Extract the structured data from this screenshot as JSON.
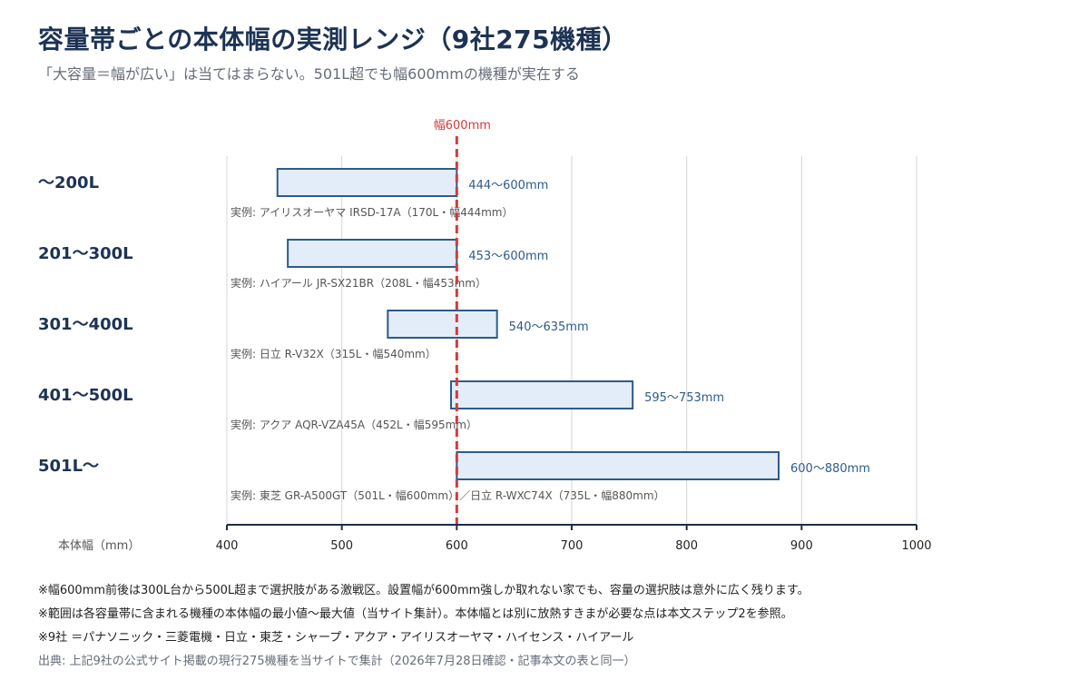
{
  "title": "容量帯ごとの本体幅の実測レンジ（9社275機種）",
  "subtitle": "「大容量＝幅が広い」は当てはまらない。501L超でも幅600mmの機種が実在する",
  "chart_data": {
    "type": "range-bar",
    "xlabel": "本体幅（mm）",
    "xlim": [
      400,
      1000
    ],
    "xticks": [
      400,
      500,
      600,
      700,
      800,
      900,
      1000
    ],
    "grid": true,
    "reference_line": {
      "value": 600,
      "label": "幅600mm",
      "color": "#d63a3a"
    },
    "categories": [
      "～200L",
      "201～300L",
      "301～400L",
      "401～500L",
      "501L～"
    ],
    "ranges": [
      {
        "category": "～200L",
        "min": 444,
        "max": 600,
        "label": "444～600mm",
        "example": "実例: アイリスオーヤマ IRSD-17A（170L・幅444mm）"
      },
      {
        "category": "201～300L",
        "min": 453,
        "max": 600,
        "label": "453～600mm",
        "example": "実例: ハイアール JR-SX21BR（208L・幅453mm）"
      },
      {
        "category": "301～400L",
        "min": 540,
        "max": 635,
        "label": "540～635mm",
        "example": "実例: 日立 R-V32X（315L・幅540mm）"
      },
      {
        "category": "401～500L",
        "min": 595,
        "max": 753,
        "label": "595～753mm",
        "example": "実例: アクア AQR-VZA45A（452L・幅595mm）"
      },
      {
        "category": "501L～",
        "min": 600,
        "max": 880,
        "label": "600～880mm",
        "example": "実例: 東芝 GR-A500GT（501L・幅600mm）／日立 R-WXC74X（735L・幅880mm）"
      }
    ],
    "colors": {
      "bar_fill": "#e3edf9",
      "bar_stroke": "#2d5b8c",
      "label": "#2d5b8c",
      "grid": "#d4d4d4",
      "axis": "#1f2d4d"
    }
  },
  "notes": [
    "※幅600mm前後は300L台から500L超まで選択肢がある激戦区。設置幅が600mm強しか取れない家でも、容量の選択肢は意外に広く残ります。",
    "※範囲は各容量帯に含まれる機種の本体幅の最小値～最大値（当サイト集計）。本体幅とは別に放熱すきまが必要な点は本文ステップ2を参照。",
    "※9社 ＝パナソニック・三菱電機・日立・東芝・シャープ・アクア・アイリスオーヤマ・ハイセンス・ハイアール"
  ],
  "source": "出典: 上記9社の公式サイト掲載の現行275機種を当サイトで集計（2026年7月28日確認・記事本文の表と同一）"
}
